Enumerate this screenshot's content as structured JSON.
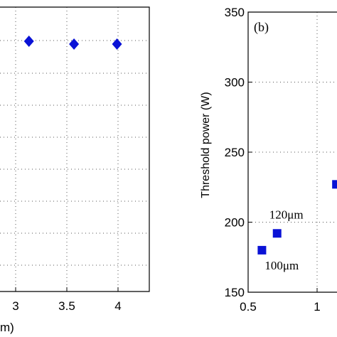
{
  "chart_data": [
    {
      "type": "scatter",
      "title": "",
      "xlabel": "m)",
      "ylabel": "",
      "xlim": [
        2.55,
        4.3
      ],
      "xticks": [
        3,
        3.5,
        4
      ],
      "tick_labels": [
        "3",
        "3.5",
        "4"
      ],
      "grid": true,
      "marker": "diamond",
      "color": "#0a12d6",
      "x": [
        3.13,
        3.57,
        3.99
      ],
      "y_rel": [
        0.88,
        0.87,
        0.87
      ]
    },
    {
      "type": "scatter",
      "panel_label": "(b)",
      "title": "",
      "xlabel": "",
      "ylabel": "Threshold power (W)",
      "xlim": [
        0.5,
        1.3
      ],
      "ylim": [
        150,
        350
      ],
      "xticks": [
        0.5,
        1
      ],
      "yticks": [
        150,
        200,
        250,
        300,
        350
      ],
      "grid": true,
      "marker": "square",
      "color": "#0a12d6",
      "points": [
        {
          "x": 0.6,
          "y": 180,
          "label": "100μm"
        },
        {
          "x": 0.71,
          "y": 192,
          "label": "120μm"
        },
        {
          "x": 1.14,
          "y": 227,
          "label": ""
        }
      ]
    }
  ]
}
